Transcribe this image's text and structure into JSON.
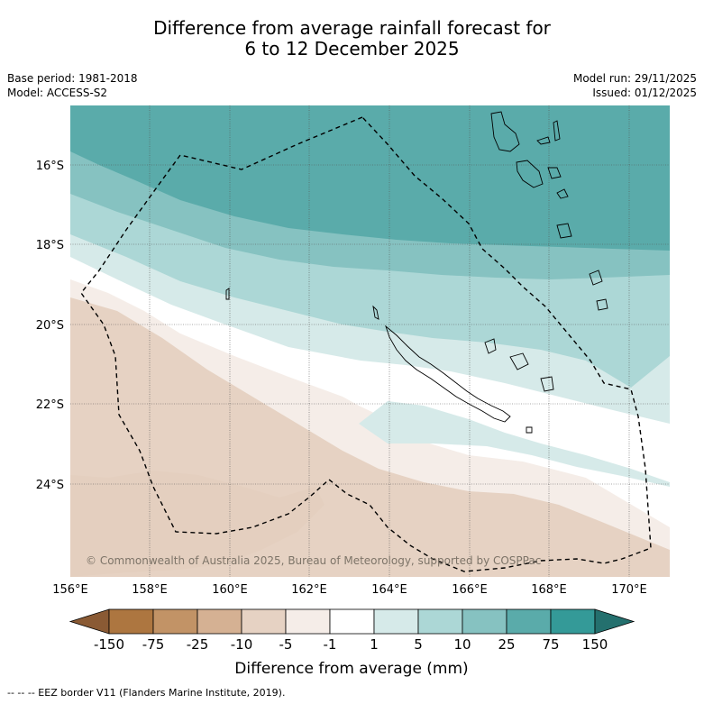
{
  "title": {
    "line1": "Difference from average rainfall forecast for",
    "line2": "6 to 12 December 2025"
  },
  "meta": {
    "base_period": "Base period: 1981-2018",
    "model": "Model: ACCESS-S2",
    "model_run": "Model run: 29/11/2025",
    "issued": "Issued: 01/12/2025"
  },
  "map": {
    "lat_labels": [
      "16°S",
      "18°S",
      "20°S",
      "22°S",
      "24°S"
    ],
    "lon_labels": [
      "156°E",
      "158°E",
      "160°E",
      "162°E",
      "164°E",
      "166°E",
      "168°E",
      "170°E"
    ],
    "copyright": "© Commonwealth of Australia 2025, Bureau of Meteorology, supported by COSPPac"
  },
  "legend": {
    "tick_labels": [
      "-150",
      "-75",
      "-25",
      "-10",
      "-5",
      "-1",
      "1",
      "5",
      "10",
      "25",
      "75",
      "150"
    ],
    "colors": [
      "#8a5a34",
      "#ad7640",
      "#c29366",
      "#d5b193",
      "#e6d2c3",
      "#f5ede8",
      "#ffffff",
      "#d6eae9",
      "#acd7d6",
      "#86c2c1",
      "#5aabaa",
      "#349a98",
      "#24706e"
    ],
    "title": "Difference from average (mm)"
  },
  "footer": {
    "eez_note": "--  --  -- EEZ border V11 (Flanders Marine Institute, 2019)."
  }
}
